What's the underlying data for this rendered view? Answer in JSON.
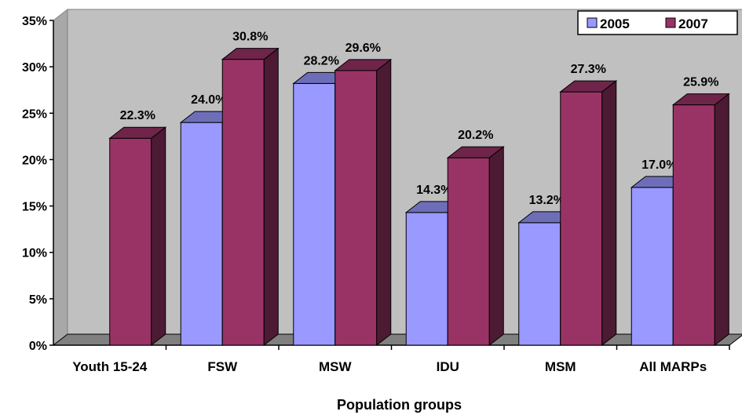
{
  "chart_data": {
    "type": "bar",
    "title": "",
    "xlabel": "Population groups",
    "ylabel": "",
    "categories": [
      "Youth 15-24",
      "FSW",
      "MSW",
      "IDU",
      "MSM",
      "All MARPs"
    ],
    "series": [
      {
        "name": "2005",
        "values": [
          null,
          24.0,
          28.2,
          14.3,
          13.2,
          17.0
        ],
        "color": "#9999FF"
      },
      {
        "name": "2007",
        "values": [
          22.3,
          30.8,
          29.6,
          20.2,
          27.3,
          25.9
        ],
        "color": "#993366"
      }
    ],
    "data_labels": [
      [
        null,
        "24.0%",
        "28.2%",
        "14.3%",
        "13.2%",
        "17.0%"
      ],
      [
        "22.3%",
        "30.8%",
        "29.6%",
        "20.2%",
        "27.3%",
        "25.9%"
      ]
    ],
    "ylim": [
      0,
      35
    ],
    "yticks": [
      "0%",
      "5%",
      "10%",
      "15%",
      "20%",
      "25%",
      "30%",
      "35%"
    ],
    "legend_position": "top-right",
    "style": "3d-clustered-column",
    "wall_color": "#C0C0C0",
    "floor_color": "#808080"
  }
}
